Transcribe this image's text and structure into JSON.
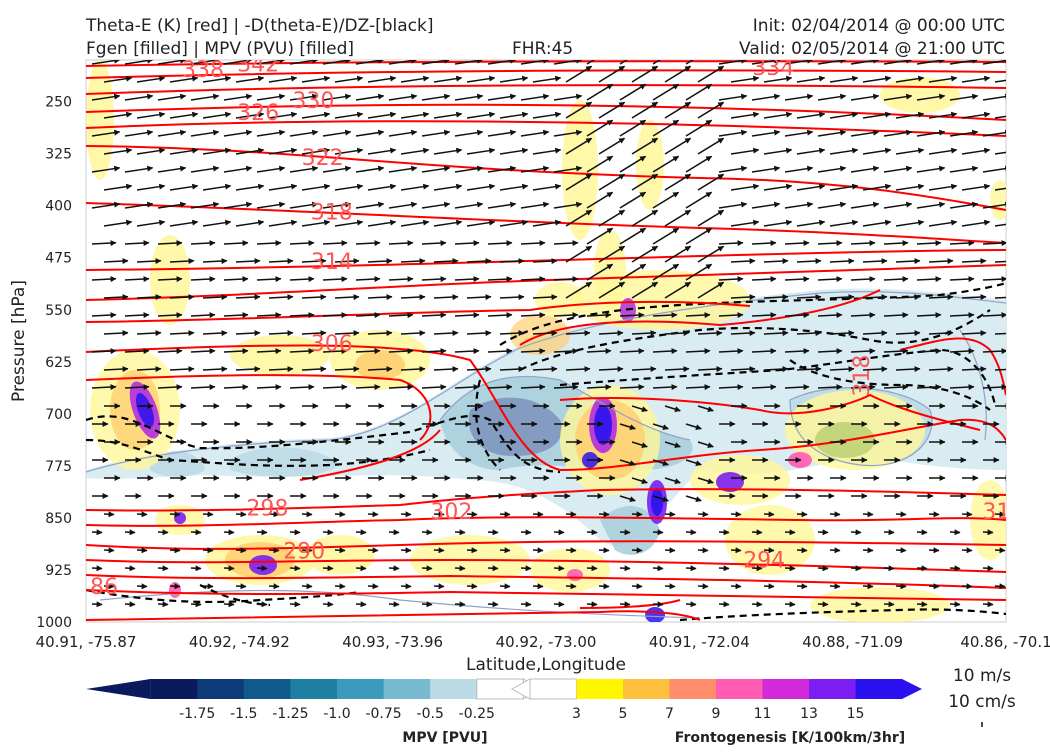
{
  "title": {
    "left_line1": "Theta-E (K) [red] | -D(theta-E)/DZ-[black]",
    "left_line2": "Fgen [filled] | MPV (PVU) [filled]",
    "center": "FHR:45",
    "right_line1": "Init: 02/04/2014 @ 00:00 UTC",
    "right_line2": "Valid: 02/05/2014 @ 21:00 UTC"
  },
  "colors": {
    "theta_e": "#ff0000",
    "theta_e_label": "#ff5555",
    "stability": "#000000",
    "mpv_outline": "#8fa3c8",
    "fgen": [
      "#fff700",
      "#ffbf3f",
      "#ff8c6a",
      "#ff5bb0",
      "#d22ad9",
      "#7a1ef2",
      "#2a12f0"
    ],
    "mpv": [
      "#0a1a5c",
      "#0d3a78",
      "#0f5a8a",
      "#1f7fa3",
      "#3c9bbd",
      "#78bad0",
      "#bcdbe5",
      "#ffffff"
    ]
  },
  "chart_data": {
    "type": "cross-section",
    "xlabel": "Latitude,Longitude",
    "ylabel": "Pressure [hPa]",
    "x_ticks": [
      "40.91, -75.87",
      "40.92, -74.92",
      "40.93, -73.96",
      "40.92, -73.00",
      "40.91, -72.04",
      "40.88, -71.09",
      "40.86, -70.1"
    ],
    "y_ticks": [
      250,
      325,
      400,
      475,
      550,
      625,
      700,
      775,
      850,
      925,
      1000
    ],
    "ylim": [
      1000,
      190
    ],
    "theta_e_labels": [
      {
        "text": "338",
        "x": 0.1,
        "p": 203
      },
      {
        "text": "342",
        "x": 0.16,
        "p": 195
      },
      {
        "text": "330",
        "x": 0.22,
        "p": 248
      },
      {
        "text": "326",
        "x": 0.16,
        "p": 265
      },
      {
        "text": "334",
        "x": 0.72,
        "p": 200
      },
      {
        "text": "322",
        "x": 0.23,
        "p": 330
      },
      {
        "text": "318",
        "x": 0.24,
        "p": 408
      },
      {
        "text": "314",
        "x": 0.24,
        "p": 480
      },
      {
        "text": "306",
        "x": 0.24,
        "p": 598
      },
      {
        "text": "298",
        "x": 0.17,
        "p": 835
      },
      {
        "text": "302",
        "x": 0.37,
        "p": 840
      },
      {
        "text": "290",
        "x": 0.21,
        "p": 897
      },
      {
        "text": "294",
        "x": 0.71,
        "p": 910
      },
      {
        "text": "318",
        "x": 0.84,
        "p": 655
      },
      {
        "text": "31",
        "x": 0.97,
        "p": 840
      },
      {
        "text": "86",
        "x": 0.0,
        "p": 948
      }
    ],
    "legend_mpv": {
      "label": "MPV [PVU]",
      "ticks": [
        "-1.75",
        "-1.5",
        "-1.25",
        "-1.0",
        "-0.75",
        "-0.5",
        "-0.25"
      ]
    },
    "legend_fgen": {
      "label": "Frontogenesis [K/100km/3hr]",
      "ticks": [
        "3",
        "5",
        "7",
        "9",
        "11",
        "13",
        "15"
      ]
    },
    "vector_key": {
      "line1": "10 m/s",
      "line2": "10 cm/s"
    }
  }
}
